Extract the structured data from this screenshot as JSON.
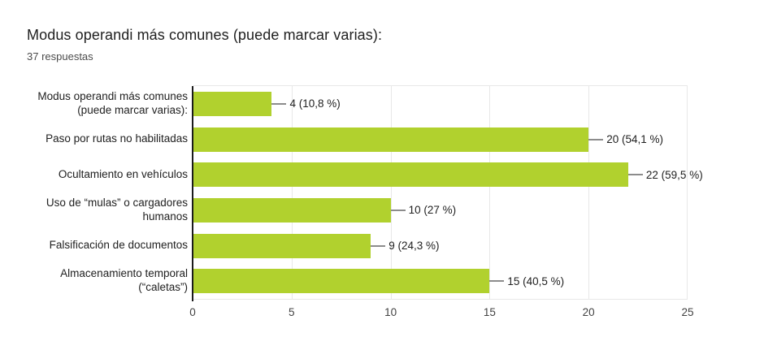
{
  "header": {
    "title": "Modus operandi más comunes (puede marcar varias):",
    "subtitle": "37 respuestas"
  },
  "chart_data": {
    "type": "bar",
    "orientation": "horizontal",
    "title": "Modus operandi más comunes (puede marcar varias):",
    "subtitle": "37 respuestas",
    "categories": [
      "Modus operandi más comunes\n(puede marcar varias):",
      "Paso por rutas no habilitadas",
      "Ocultamiento en vehículos",
      "Uso de “mulas” o cargadores\nhumanos",
      "Falsificación de documentos",
      "Almacenamiento temporal\n(“caletas”)"
    ],
    "values": [
      4,
      20,
      22,
      10,
      9,
      15
    ],
    "value_labels": [
      "4 (10,8 %)",
      "20 (54,1 %)",
      "22 (59,5 %)",
      "10 (27 %)",
      "9 (24,3 %)",
      "15 (40,5 %)"
    ],
    "percentages": [
      10.8,
      54.1,
      59.5,
      27,
      24.3,
      40.5
    ],
    "xlim": [
      0,
      25
    ],
    "xticks": [
      0,
      5,
      10,
      15,
      20,
      25
    ],
    "grid": true,
    "legend": "none",
    "bar_color": "#b1d12e"
  },
  "colors": {
    "bar": "#b1d12e",
    "axis_line": "#1b1b1b",
    "gridline": "#e8e8e8",
    "leader_line": "#8c8c8c",
    "title_text": "#212121",
    "tick_text": "#424242"
  }
}
